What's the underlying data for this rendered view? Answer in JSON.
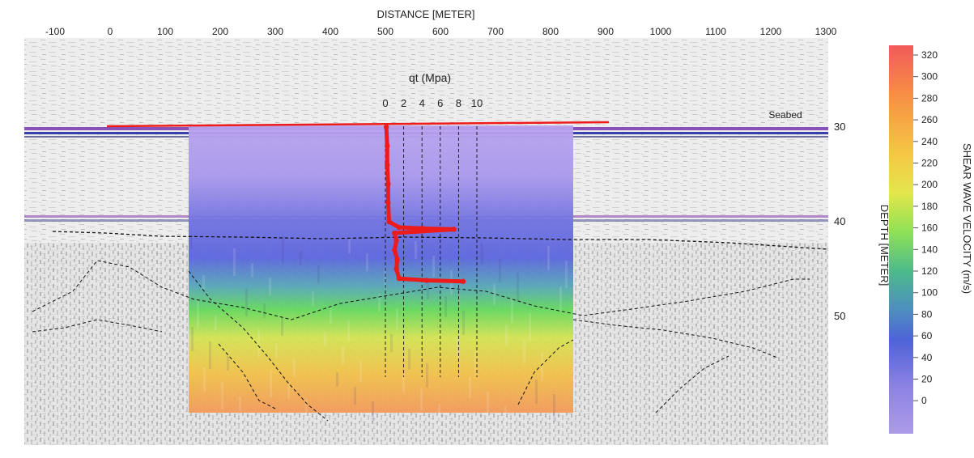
{
  "chart_data": {
    "type": "heatmap",
    "title": "",
    "xlabel": "DISTANCE [METER]",
    "ylabel": "DEPTH [METER]",
    "x_ticks": [
      -100,
      0,
      100,
      200,
      300,
      400,
      500,
      600,
      700,
      800,
      900,
      1000,
      1100,
      1200,
      1300
    ],
    "y_ticks": [
      30,
      40,
      50
    ],
    "xlim": [
      -145,
      1310
    ],
    "ylim": [
      23,
      60
    ],
    "seabed_label": "Seabed",
    "shear_wave_section": {
      "x_range": [
        150,
        845
      ],
      "depth_range": [
        30,
        56
      ],
      "description_zones": [
        {
          "depth": [
            30,
            35
          ],
          "velocity": 10
        },
        {
          "depth": [
            35,
            40
          ],
          "velocity": 70
        },
        {
          "depth": [
            40,
            44
          ],
          "velocity": 110
        },
        {
          "depth": [
            44,
            48
          ],
          "velocity": 160
        },
        {
          "depth": [
            48,
            52
          ],
          "velocity": 210
        },
        {
          "depth": [
            52,
            56
          ],
          "velocity": 260
        }
      ]
    },
    "colorbar": {
      "label": "SHEAR WAVE VELOCITY (m/s)",
      "ticks": [
        320,
        300,
        280,
        260,
        240,
        220,
        200,
        180,
        160,
        140,
        120,
        100,
        80,
        60,
        40,
        20,
        0
      ],
      "colors": [
        "#f25a5a",
        "#f4754f",
        "#f68c45",
        "#f7a041",
        "#f8b440",
        "#f6c744",
        "#f1db4a",
        "#e3e64c",
        "#b9e64e",
        "#8fe156",
        "#64d85e",
        "#4dbb8a",
        "#4d8fc0",
        "#4f63d8",
        "#6d68dd",
        "#8d82e3",
        "#ac9be8"
      ]
    },
    "cpt_profile": {
      "title": "qt (Mpa)",
      "ticks": [
        0,
        2,
        4,
        6,
        8,
        10
      ],
      "x_at_zero": 500,
      "series": [
        {
          "qt": 0.1,
          "depth": 30
        },
        {
          "qt": 0.2,
          "depth": 32
        },
        {
          "qt": 0.2,
          "depth": 34
        },
        {
          "qt": 0.3,
          "depth": 36
        },
        {
          "qt": 0.3,
          "depth": 38
        },
        {
          "qt": 0.4,
          "depth": 40
        },
        {
          "qt": 1.5,
          "depth": 40.6
        },
        {
          "qt": 4.0,
          "depth": 40.7
        },
        {
          "qt": 7.5,
          "depth": 40.8
        },
        {
          "qt": 1.0,
          "depth": 41.2
        },
        {
          "qt": 1.2,
          "depth": 42
        },
        {
          "qt": 1.0,
          "depth": 43
        },
        {
          "qt": 1.3,
          "depth": 44
        },
        {
          "qt": 1.2,
          "depth": 45
        },
        {
          "qt": 1.5,
          "depth": 46
        },
        {
          "qt": 4.5,
          "depth": 46.2
        },
        {
          "qt": 8.5,
          "depth": 46.3
        }
      ]
    },
    "horizon_depths": [
      40.3
    ]
  }
}
